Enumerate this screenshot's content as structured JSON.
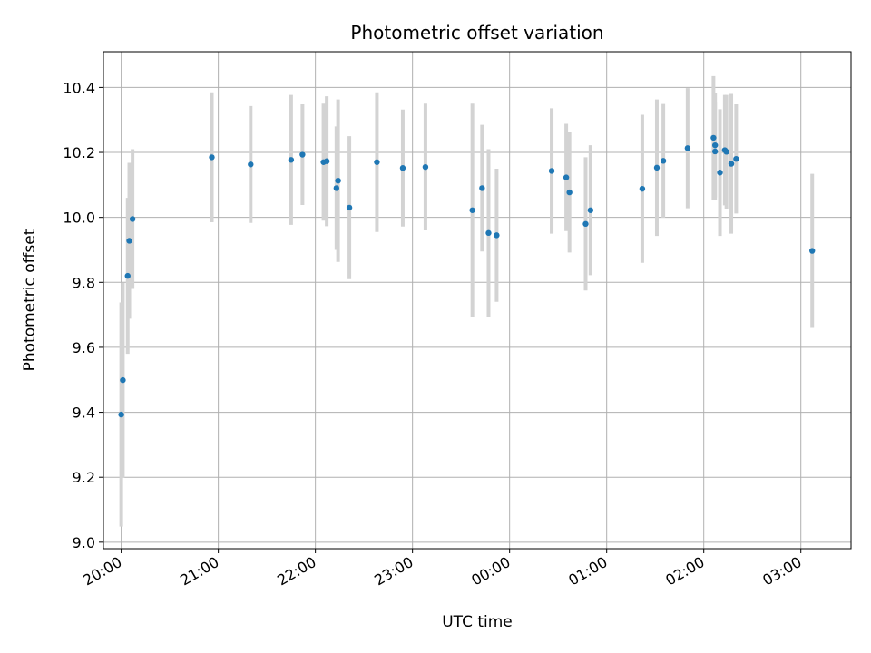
{
  "chart_data": {
    "type": "scatter",
    "title": "Photometric offset variation",
    "xlabel": "UTC time",
    "ylabel": "Photometric offset",
    "ylim": [
      8.98,
      10.51
    ],
    "xlim": [
      "19:49",
      "03:31"
    ],
    "grid": true,
    "x_ticks": [
      "20:00",
      "21:00",
      "22:00",
      "23:00",
      "00:00",
      "01:00",
      "02:00",
      "03:00"
    ],
    "y_ticks": [
      "9.0",
      "9.2",
      "9.4",
      "9.6",
      "9.8",
      "10.0",
      "10.2",
      "10.4"
    ],
    "point_color": "#1f77b4",
    "errorbar_color": "#d3d3d3",
    "points": [
      {
        "t": "20:00",
        "y": 9.393,
        "err": 0.345
      },
      {
        "t": "20:01",
        "y": 9.499,
        "err": 0.3
      },
      {
        "t": "20:04",
        "y": 9.82,
        "err": 0.24
      },
      {
        "t": "20:05",
        "y": 9.928,
        "err": 0.24
      },
      {
        "t": "20:07",
        "y": 9.995,
        "err": 0.215
      },
      {
        "t": "20:56",
        "y": 10.185,
        "err": 0.2
      },
      {
        "t": "21:20",
        "y": 10.163,
        "err": 0.18
      },
      {
        "t": "21:45",
        "y": 10.177,
        "err": 0.2
      },
      {
        "t": "21:52",
        "y": 10.193,
        "err": 0.155
      },
      {
        "t": "22:05",
        "y": 10.17,
        "err": 0.18
      },
      {
        "t": "22:07",
        "y": 10.173,
        "err": 0.2
      },
      {
        "t": "22:13",
        "y": 10.09,
        "err": 0.19
      },
      {
        "t": "22:14",
        "y": 10.113,
        "err": 0.25
      },
      {
        "t": "22:21",
        "y": 10.03,
        "err": 0.22
      },
      {
        "t": "22:38",
        "y": 10.17,
        "err": 0.215
      },
      {
        "t": "22:54",
        "y": 10.152,
        "err": 0.18
      },
      {
        "t": "23:08",
        "y": 10.155,
        "err": 0.195
      },
      {
        "t": "23:37",
        "y": 10.022,
        "err": 0.328
      },
      {
        "t": "23:43",
        "y": 10.09,
        "err": 0.195
      },
      {
        "t": "23:47",
        "y": 9.952,
        "err": 0.258
      },
      {
        "t": "23:52",
        "y": 9.945,
        "err": 0.205
      },
      {
        "t": "00:26",
        "y": 10.143,
        "err": 0.193
      },
      {
        "t": "00:35",
        "y": 10.123,
        "err": 0.165
      },
      {
        "t": "00:37",
        "y": 10.077,
        "err": 0.185
      },
      {
        "t": "00:47",
        "y": 9.98,
        "err": 0.205
      },
      {
        "t": "00:50",
        "y": 10.022,
        "err": 0.2
      },
      {
        "t": "01:22",
        "y": 10.088,
        "err": 0.228
      },
      {
        "t": "01:31",
        "y": 10.153,
        "err": 0.21
      },
      {
        "t": "01:35",
        "y": 10.174,
        "err": 0.175
      },
      {
        "t": "01:50",
        "y": 10.213,
        "err": 0.185
      },
      {
        "t": "02:06",
        "y": 10.245,
        "err": 0.19
      },
      {
        "t": "02:07",
        "y": 10.222,
        "err": 0.16
      },
      {
        "t": "02:07",
        "y": 10.203,
        "err": 0.15
      },
      {
        "t": "02:10",
        "y": 10.138,
        "err": 0.195
      },
      {
        "t": "02:13",
        "y": 10.207,
        "err": 0.17
      },
      {
        "t": "02:14",
        "y": 10.202,
        "err": 0.175
      },
      {
        "t": "02:17",
        "y": 10.165,
        "err": 0.215
      },
      {
        "t": "02:20",
        "y": 10.18,
        "err": 0.168
      },
      {
        "t": "03:07",
        "y": 9.897,
        "err": 0.237
      }
    ]
  }
}
